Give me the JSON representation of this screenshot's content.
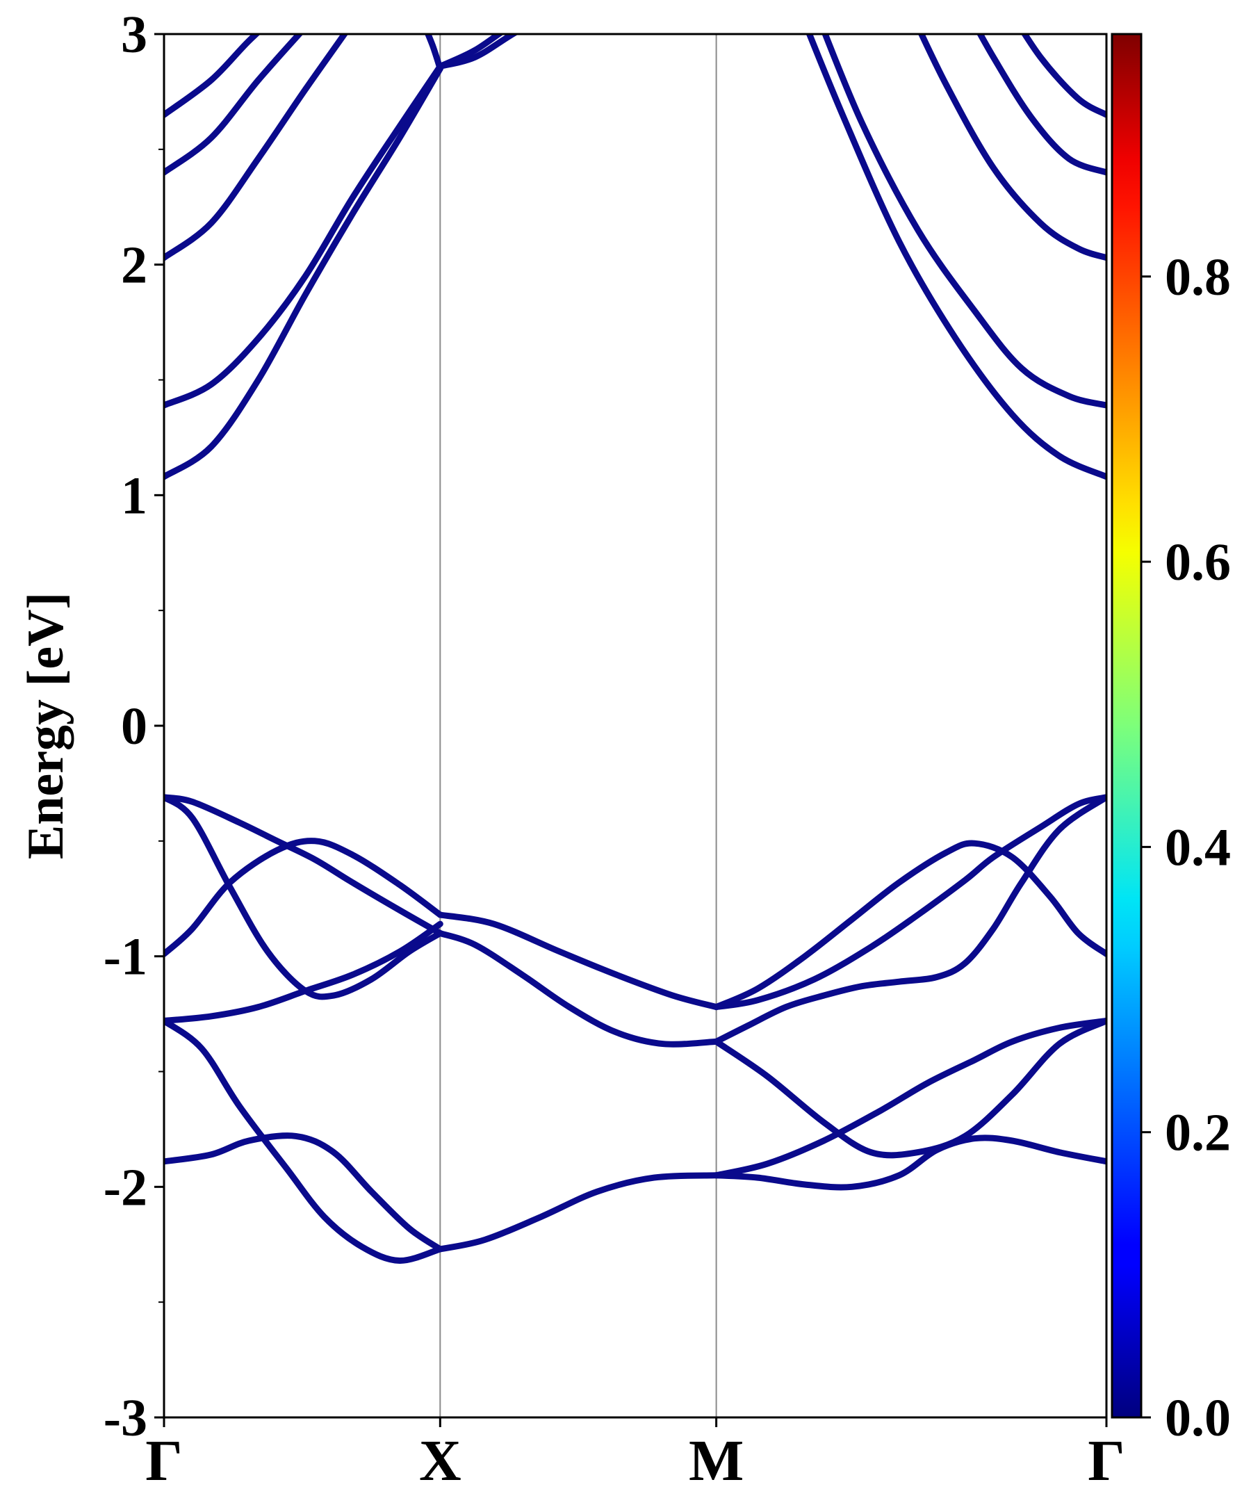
{
  "chart_data": {
    "type": "line",
    "ylabel": "Energy [eV]",
    "xlabel": "",
    "ylim": [
      -3,
      3
    ],
    "y_ticks": [
      -3,
      -2,
      -1,
      0,
      1,
      2,
      3
    ],
    "y_tick_labels": [
      "-3",
      "-2",
      "-1",
      "0",
      "1",
      "2",
      "3"
    ],
    "k_points": [
      {
        "label": "Γ",
        "x": 0.0
      },
      {
        "label": "X",
        "x": 0.293
      },
      {
        "label": "M",
        "x": 0.586
      },
      {
        "label": "Γ",
        "x": 1.0
      }
    ],
    "grid": false,
    "line_color": "#0a0a8c",
    "colorbar": {
      "colormap": "jet",
      "range": [
        0.0,
        0.97
      ],
      "ticks": [
        0.0,
        0.2,
        0.4,
        0.6,
        0.8
      ],
      "tick_labels": [
        "0.0",
        "0.2",
        "0.4",
        "0.6",
        "0.8"
      ]
    },
    "series": [
      {
        "x": [
          0.0,
          0.05,
          0.1,
          0.15,
          0.2,
          0.25,
          0.293
        ],
        "values": [
          1.08,
          1.21,
          1.5,
          1.87,
          2.22,
          2.55,
          2.85
        ]
      },
      {
        "x": [
          0.0,
          0.05,
          0.1,
          0.15,
          0.2,
          0.25,
          0.293
        ],
        "values": [
          1.39,
          1.48,
          1.68,
          1.95,
          2.29,
          2.6,
          2.86
        ]
      },
      {
        "x": [
          0.0,
          0.05,
          0.1,
          0.15,
          0.2,
          0.21
        ],
        "values": [
          2.03,
          2.18,
          2.46,
          2.76,
          3.05,
          3.12
        ]
      },
      {
        "x": [
          0.0,
          0.05,
          0.1,
          0.15,
          0.17
        ],
        "values": [
          2.4,
          2.55,
          2.8,
          3.03,
          3.12
        ]
      },
      {
        "x": [
          0.0,
          0.05,
          0.09,
          0.13
        ],
        "values": [
          2.65,
          2.8,
          2.97,
          3.12
        ]
      },
      {
        "x": [
          0.275,
          0.285,
          0.293
        ],
        "values": [
          3.05,
          2.95,
          2.85
        ]
      },
      {
        "x": [
          0.293,
          0.33,
          0.37,
          0.42
        ],
        "values": [
          2.86,
          2.9,
          3.0,
          3.12
        ]
      },
      {
        "x": [
          0.293,
          0.33,
          0.37,
          0.41
        ],
        "values": [
          2.86,
          2.93,
          3.04,
          3.12
        ]
      },
      {
        "x": [
          0.673,
          0.72,
          0.78,
          0.84,
          0.9,
          0.95,
          1.0
        ],
        "values": [
          3.12,
          2.65,
          2.1,
          1.68,
          1.35,
          1.17,
          1.08
        ]
      },
      {
        "x": [
          0.69,
          0.74,
          0.8,
          0.86,
          0.91,
          0.96,
          1.0
        ],
        "values": [
          3.12,
          2.62,
          2.15,
          1.8,
          1.55,
          1.43,
          1.39
        ]
      },
      {
        "x": [
          0.79,
          0.83,
          0.88,
          0.93,
          0.97,
          1.0
        ],
        "values": [
          3.12,
          2.78,
          2.42,
          2.18,
          2.07,
          2.03
        ]
      },
      {
        "x": [
          0.85,
          0.88,
          0.92,
          0.96,
          1.0
        ],
        "values": [
          3.12,
          2.9,
          2.64,
          2.46,
          2.4
        ]
      },
      {
        "x": [
          0.895,
          0.93,
          0.97,
          1.0
        ],
        "values": [
          3.12,
          2.9,
          2.72,
          2.65
        ]
      },
      {
        "x": [
          0.0,
          0.03,
          0.08,
          0.12,
          0.16,
          0.2,
          0.25,
          0.293
        ],
        "values": [
          -0.31,
          -0.33,
          -0.42,
          -0.5,
          -0.58,
          -0.68,
          -0.8,
          -0.9
        ]
      },
      {
        "x": [
          0.0,
          0.03,
          0.07,
          0.11,
          0.15,
          0.18,
          0.22,
          0.26,
          0.293
        ],
        "values": [
          -0.31,
          -0.4,
          -0.7,
          -0.98,
          -1.15,
          -1.17,
          -1.1,
          -0.98,
          -0.9
        ]
      },
      {
        "x": [
          0.0,
          0.03,
          0.07,
          0.12,
          0.16,
          0.2,
          0.25,
          0.293
        ],
        "values": [
          -0.99,
          -0.88,
          -0.68,
          -0.54,
          -0.5,
          -0.56,
          -0.69,
          -0.82
        ]
      },
      {
        "x": [
          0.0,
          0.05,
          0.1,
          0.15,
          0.2,
          0.25,
          0.293
        ],
        "values": [
          -1.28,
          -1.26,
          -1.22,
          -1.15,
          -1.08,
          -0.98,
          -0.86
        ]
      },
      {
        "x": [
          0.293,
          0.35,
          0.42,
          0.48,
          0.54,
          0.586
        ],
        "values": [
          -0.82,
          -0.86,
          -0.98,
          -1.08,
          -1.17,
          -1.22
        ]
      },
      {
        "x": [
          0.293,
          0.33,
          0.38,
          0.43,
          0.48,
          0.53,
          0.586
        ],
        "values": [
          -0.9,
          -0.95,
          -1.08,
          -1.22,
          -1.33,
          -1.38,
          -1.37
        ]
      },
      {
        "x": [
          0.0,
          0.04,
          0.08,
          0.13,
          0.17,
          0.21,
          0.25,
          0.293
        ],
        "values": [
          -1.28,
          -1.4,
          -1.65,
          -1.92,
          -2.13,
          -2.26,
          -2.32,
          -2.27
        ]
      },
      {
        "x": [
          0.0,
          0.05,
          0.09,
          0.14,
          0.18,
          0.22,
          0.26,
          0.293
        ],
        "values": [
          -1.89,
          -1.86,
          -1.8,
          -1.78,
          -1.85,
          -2.02,
          -2.18,
          -2.27
        ]
      },
      {
        "x": [
          0.293,
          0.34,
          0.4,
          0.46,
          0.52,
          0.586
        ],
        "values": [
          -2.27,
          -2.23,
          -2.13,
          -2.02,
          -1.96,
          -1.95
        ]
      },
      {
        "x": [
          0.586,
          0.63,
          0.69,
          0.75,
          0.8,
          0.85,
          0.88,
          0.93,
          0.97,
          1.0
        ],
        "values": [
          -1.22,
          -1.19,
          -1.1,
          -0.96,
          -0.82,
          -0.67,
          -0.57,
          -0.44,
          -0.34,
          -0.31
        ]
      },
      {
        "x": [
          0.586,
          0.63,
          0.68,
          0.73,
          0.78,
          0.83,
          0.86,
          0.9,
          0.94,
          0.97,
          1.0
        ],
        "values": [
          -1.22,
          -1.14,
          -1.0,
          -0.84,
          -0.68,
          -0.55,
          -0.51,
          -0.57,
          -0.74,
          -0.9,
          -0.99
        ]
      },
      {
        "x": [
          0.586,
          0.62,
          0.66,
          0.7,
          0.74,
          0.78,
          0.82,
          0.85,
          0.88,
          0.91,
          0.95,
          1.0
        ],
        "values": [
          -1.37,
          -1.3,
          -1.22,
          -1.17,
          -1.13,
          -1.11,
          -1.09,
          -1.03,
          -0.88,
          -0.68,
          -0.45,
          -0.31
        ]
      },
      {
        "x": [
          0.586,
          0.64,
          0.7,
          0.75,
          0.8,
          0.85,
          0.9,
          0.95,
          1.0
        ],
        "values": [
          -1.37,
          -1.52,
          -1.72,
          -1.85,
          -1.85,
          -1.78,
          -1.6,
          -1.38,
          -1.28
        ]
      },
      {
        "x": [
          0.586,
          0.64,
          0.7,
          0.76,
          0.81,
          0.86,
          0.9,
          0.95,
          1.0
        ],
        "values": [
          -1.95,
          -1.9,
          -1.8,
          -1.67,
          -1.55,
          -1.45,
          -1.37,
          -1.31,
          -1.28
        ]
      },
      {
        "x": [
          0.586,
          0.63,
          0.68,
          0.73,
          0.78,
          0.82,
          0.86,
          0.9,
          0.95,
          1.0
        ],
        "values": [
          -1.95,
          -1.96,
          -1.99,
          -2.0,
          -1.95,
          -1.84,
          -1.79,
          -1.8,
          -1.85,
          -1.89
        ]
      }
    ]
  }
}
